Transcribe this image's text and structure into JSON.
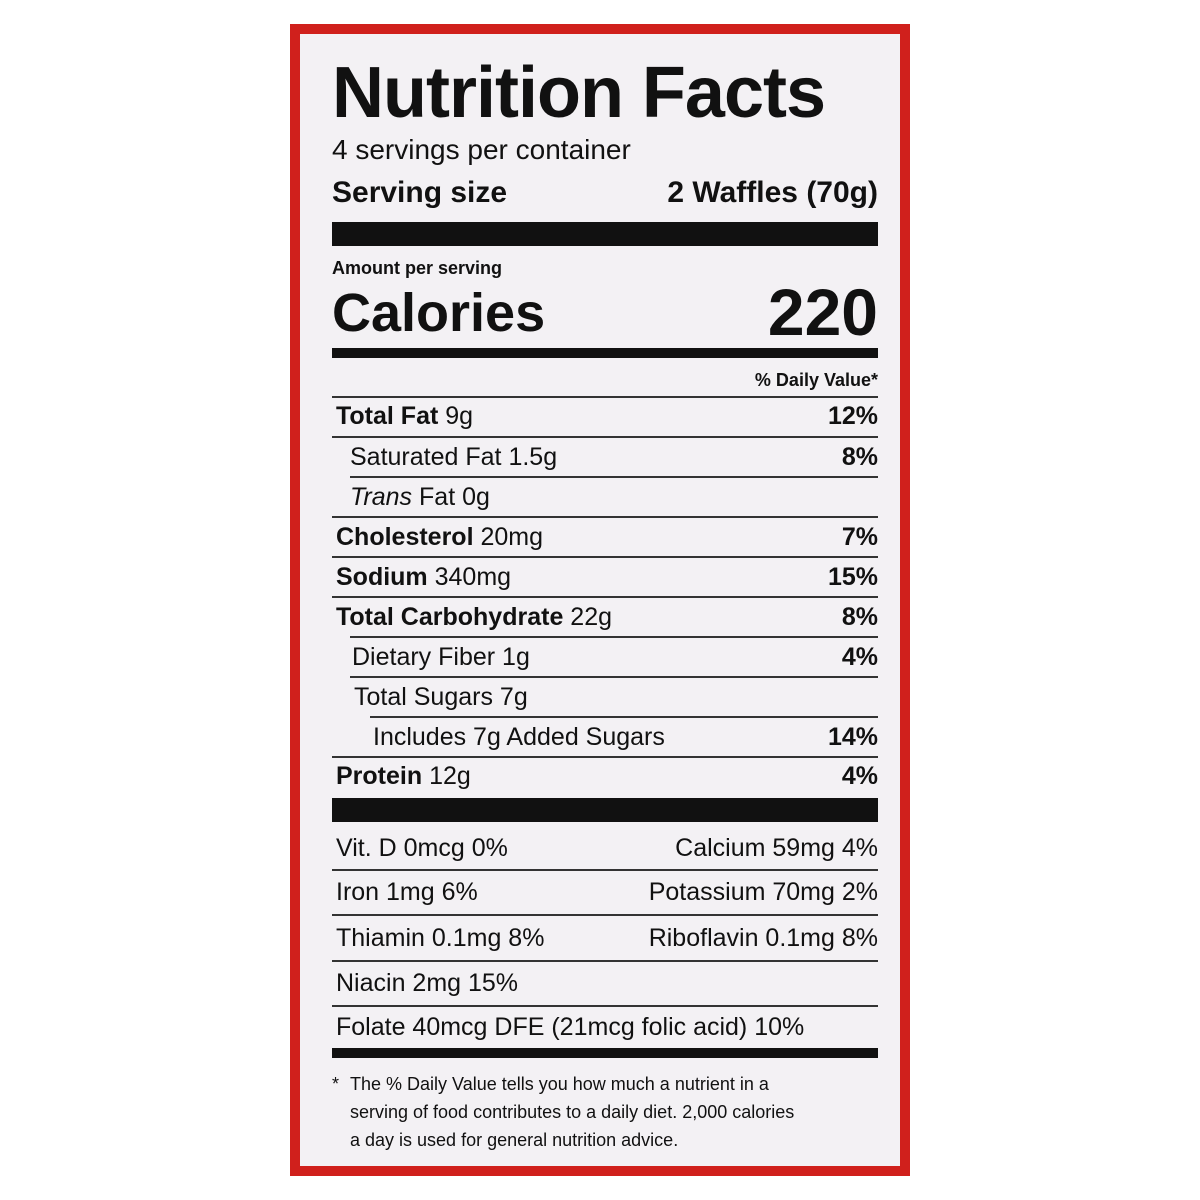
{
  "title": "Nutrition Facts",
  "servings": "4 servings per container",
  "serving_size": {
    "label": "Serving size",
    "value": "2 Waffles (70g)"
  },
  "amount_per_serving": "Amount per serving",
  "calories": {
    "label": "Calories",
    "value": "220"
  },
  "dv_header": "% Daily Value*",
  "nutrients": [
    {
      "name": "Total Fat",
      "amount": "9g",
      "dv": "12%"
    },
    {
      "name": "Saturated Fat",
      "amount": "1.5g",
      "dv": "8%"
    },
    {
      "name": [
        "Trans",
        "Fat"
      ],
      "amount": "0g"
    },
    {
      "name": "Cholesterol",
      "amount": "20mg",
      "dv": "7%"
    },
    {
      "name": "Sodium",
      "amount": "340mg",
      "dv": "15%"
    },
    {
      "name": "Total Carbohydrate",
      "amount": "22g",
      "dv": "8%"
    },
    {
      "name": "Dietary Fiber",
      "amount": "1g",
      "dv": "4%"
    },
    {
      "name": "Total Sugars",
      "amount": "7g"
    },
    {
      "name": "Includes 7g Added Sugars",
      "dv": "14%"
    },
    {
      "name": "Protein",
      "amount": "12g",
      "dv": "4%"
    }
  ],
  "vitamins": [
    [
      "Vit. D 0mcg 0%",
      "Calcium 59mg 4%"
    ],
    [
      "Iron 1mg 6%",
      "Potassium 70mg 2%"
    ],
    [
      "Thiamin 0.1mg 8%",
      "Riboflavin 0.1mg 8%"
    ],
    [
      "Niacin 2mg 15%"
    ],
    [
      "Folate 40mcg DFE (21mcg folic acid) 10%"
    ]
  ],
  "footnote": {
    "mark": "*",
    "lines": [
      "The % Daily Value tells you how much a nutrient in a",
      "serving of food contributes to a daily diet. 2,000 calories",
      "a day is used for general nutrition advice."
    ]
  }
}
